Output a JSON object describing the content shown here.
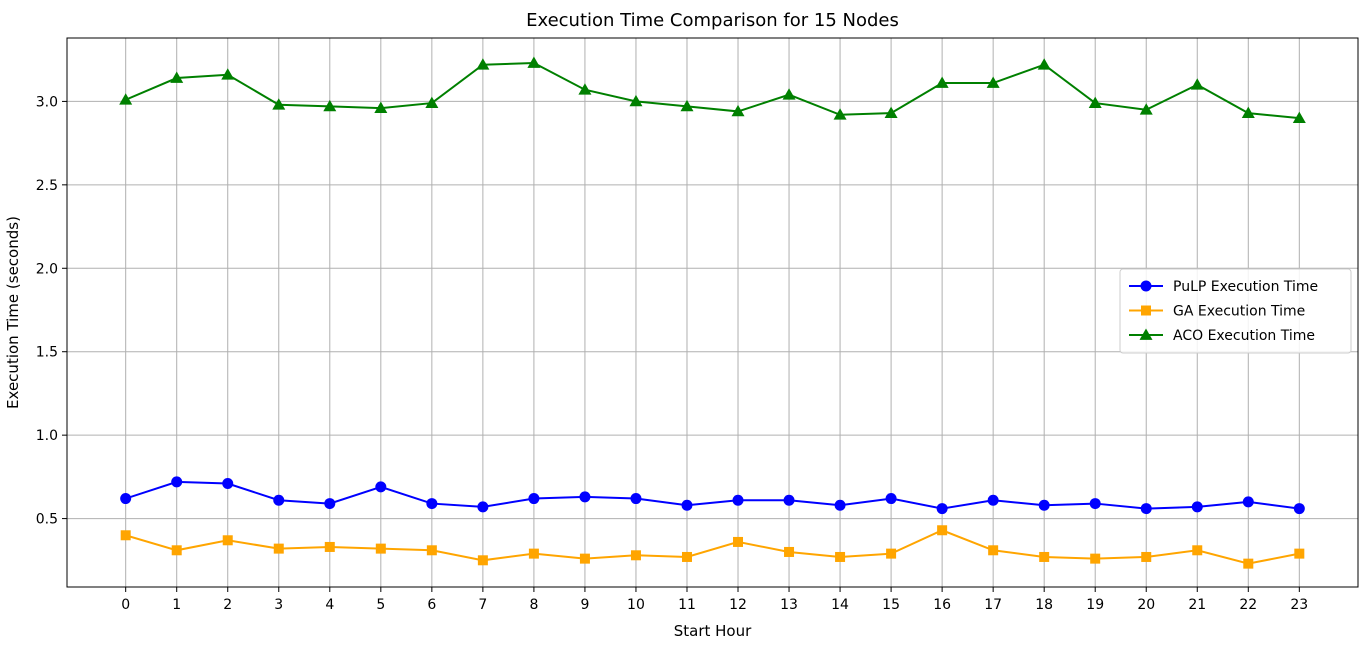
{
  "chart_data": {
    "type": "line",
    "title": "Execution Time Comparison for 15 Nodes",
    "xlabel": "Start Hour",
    "ylabel": "Execution Time (seconds)",
    "x": [
      0,
      1,
      2,
      3,
      4,
      5,
      6,
      7,
      8,
      9,
      10,
      11,
      12,
      13,
      14,
      15,
      16,
      17,
      18,
      19,
      20,
      21,
      22,
      23
    ],
    "xlim": [
      -1.15,
      24.15
    ],
    "ylim": [
      0.09,
      3.38
    ],
    "yticks": [
      0.5,
      1.0,
      1.5,
      2.0,
      2.5,
      3.0
    ],
    "ytick_labels": [
      "0.5",
      "1.0",
      "1.5",
      "2.0",
      "2.5",
      "3.0"
    ],
    "grid": true,
    "legend_position": "center-right",
    "series": [
      {
        "name": "PuLP Execution Time",
        "color": "#0000ff",
        "marker": "circle",
        "values": [
          0.62,
          0.72,
          0.71,
          0.61,
          0.59,
          0.69,
          0.59,
          0.57,
          0.62,
          0.63,
          0.62,
          0.58,
          0.61,
          0.61,
          0.58,
          0.62,
          0.56,
          0.61,
          0.58,
          0.59,
          0.56,
          0.57,
          0.6,
          0.56
        ]
      },
      {
        "name": "GA Execution Time",
        "color": "#ffa500",
        "marker": "square",
        "values": [
          0.4,
          0.31,
          0.37,
          0.32,
          0.33,
          0.32,
          0.31,
          0.25,
          0.29,
          0.26,
          0.28,
          0.27,
          0.36,
          0.3,
          0.27,
          0.29,
          0.43,
          0.31,
          0.27,
          0.26,
          0.27,
          0.31,
          0.23,
          0.29
        ]
      },
      {
        "name": "ACO Execution Time",
        "color": "#008000",
        "marker": "triangle",
        "values": [
          3.01,
          3.14,
          3.16,
          2.98,
          2.97,
          2.96,
          2.99,
          3.22,
          3.23,
          3.07,
          3.0,
          2.97,
          2.94,
          3.04,
          2.92,
          2.93,
          3.11,
          3.11,
          3.22,
          2.99,
          2.95,
          3.1,
          2.93,
          2.9
        ]
      }
    ]
  }
}
